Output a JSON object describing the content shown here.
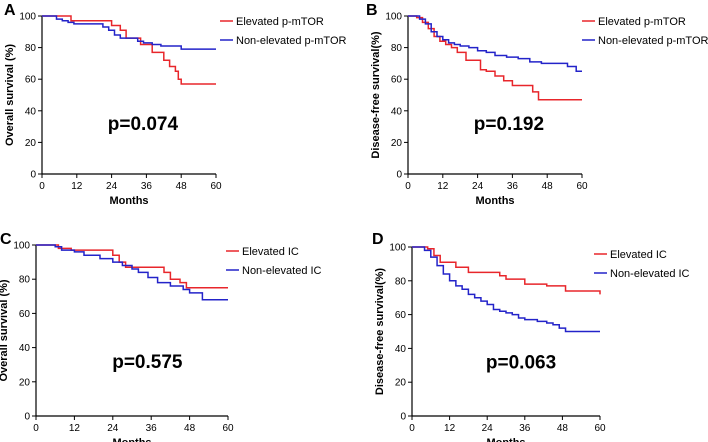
{
  "chart_data": [
    {
      "type": "line",
      "panel_label": "A",
      "xlabel": "Months",
      "ylabel": "Overall survival (%)",
      "xlim": [
        0,
        60
      ],
      "ylim": [
        0,
        100
      ],
      "xticks": [
        0,
        12,
        24,
        36,
        48,
        60
      ],
      "yticks": [
        0,
        20,
        40,
        60,
        80,
        100
      ],
      "annotation": "p=0.074",
      "legend_position": "top-right",
      "series": [
        {
          "name": "Elevated p-mTOR",
          "color": "#e8262b",
          "x": [
            0,
            8,
            10,
            16,
            18,
            24,
            27,
            29,
            33,
            34,
            38,
            41,
            42,
            44,
            46,
            47,
            48,
            51,
            60
          ],
          "y": [
            100,
            100,
            97,
            97,
            97,
            94,
            91,
            86,
            86,
            82,
            77,
            77,
            72,
            68,
            65,
            60,
            57,
            57,
            57
          ]
        },
        {
          "name": "Non-elevated p-mTOR",
          "color": "#2323c9",
          "x": [
            0,
            5,
            7,
            9,
            11,
            14,
            21,
            23,
            25,
            27,
            30,
            33,
            35,
            38,
            41,
            45,
            48,
            60
          ],
          "y": [
            100,
            98,
            97,
            96,
            95,
            95,
            93,
            91,
            88,
            86,
            86,
            84,
            83,
            82,
            81,
            81,
            79,
            79
          ]
        }
      ]
    },
    {
      "type": "line",
      "panel_label": "B",
      "xlabel": "Months",
      "ylabel": "Disease-free survival(%)",
      "xlim": [
        0,
        60
      ],
      "ylim": [
        0,
        100
      ],
      "xticks": [
        0,
        12,
        24,
        36,
        48,
        60
      ],
      "yticks": [
        0,
        20,
        40,
        60,
        80,
        100
      ],
      "annotation": "p=0.192",
      "legend_position": "top-right",
      "series": [
        {
          "name": "Elevated p-mTOR",
          "color": "#e8262b",
          "x": [
            0,
            3,
            5,
            7,
            9,
            11,
            13,
            15,
            17,
            20,
            23,
            25,
            27,
            30,
            33,
            36,
            40,
            43,
            45,
            48,
            60
          ],
          "y": [
            100,
            99,
            96,
            92,
            87,
            84,
            82,
            80,
            77,
            72,
            72,
            66,
            65,
            62,
            59,
            56,
            56,
            52,
            47,
            47,
            47
          ]
        },
        {
          "name": "Non-elevated p-mTOR",
          "color": "#2323c9",
          "x": [
            0,
            4,
            6,
            8,
            10,
            12,
            14,
            16,
            18,
            21,
            24,
            27,
            30,
            34,
            38,
            42,
            46,
            50,
            55,
            58,
            60
          ],
          "y": [
            100,
            98,
            95,
            90,
            87,
            85,
            83,
            82,
            81,
            80,
            78,
            77,
            75,
            74,
            73,
            71,
            70,
            70,
            68,
            65,
            65
          ]
        }
      ]
    },
    {
      "type": "line",
      "panel_label": "C",
      "xlabel": "Months",
      "ylabel": "Overall survival (%)",
      "xlim": [
        0,
        60
      ],
      "ylim": [
        0,
        100
      ],
      "xticks": [
        0,
        12,
        24,
        36,
        48,
        60
      ],
      "yticks": [
        0,
        20,
        40,
        60,
        80,
        100
      ],
      "annotation": "p=0.575",
      "legend_position": "top-right",
      "series": [
        {
          "name": "Elevated IC",
          "color": "#e8262b",
          "x": [
            0,
            7,
            11,
            16,
            24,
            26,
            28,
            34,
            40,
            42,
            45,
            47,
            49,
            60
          ],
          "y": [
            100,
            98,
            97,
            97,
            94,
            90,
            87,
            87,
            84,
            80,
            78,
            75,
            75,
            75
          ]
        },
        {
          "name": "Non-elevated IC",
          "color": "#2323c9",
          "x": [
            0,
            6,
            8,
            12,
            15,
            20,
            24,
            27,
            30,
            32,
            35,
            38,
            42,
            46,
            48,
            52,
            60
          ],
          "y": [
            100,
            99,
            97,
            96,
            94,
            92,
            90,
            88,
            86,
            84,
            81,
            78,
            76,
            74,
            72,
            68,
            68
          ]
        }
      ]
    },
    {
      "type": "line",
      "panel_label": "D",
      "xlabel": "Months",
      "ylabel": "Disease-free survival(%)",
      "xlim": [
        0,
        60
      ],
      "ylim": [
        0,
        100
      ],
      "xticks": [
        0,
        12,
        24,
        36,
        48,
        60
      ],
      "yticks": [
        0,
        20,
        40,
        60,
        80,
        100
      ],
      "annotation": "p=0.063",
      "legend_position": "top-right",
      "series": [
        {
          "name": "Elevated IC",
          "color": "#e8262b",
          "x": [
            0,
            5,
            7,
            9,
            14,
            18,
            21,
            24,
            28,
            30,
            36,
            43,
            49,
            59,
            60
          ],
          "y": [
            100,
            99,
            95,
            91,
            88,
            85,
            85,
            85,
            83,
            81,
            78,
            77,
            74,
            74,
            72
          ]
        },
        {
          "name": "Non-elevated IC",
          "color": "#2323c9",
          "x": [
            0,
            4,
            6,
            8,
            10,
            12,
            14,
            16,
            18,
            20,
            22,
            24,
            26,
            28,
            30,
            32,
            34,
            36,
            40,
            43,
            45,
            47,
            49,
            55,
            60
          ],
          "y": [
            100,
            98,
            94,
            89,
            84,
            80,
            77,
            75,
            72,
            70,
            68,
            66,
            63,
            62,
            61,
            60,
            58,
            57,
            56,
            55,
            54,
            52,
            50,
            50,
            50
          ]
        }
      ]
    }
  ]
}
